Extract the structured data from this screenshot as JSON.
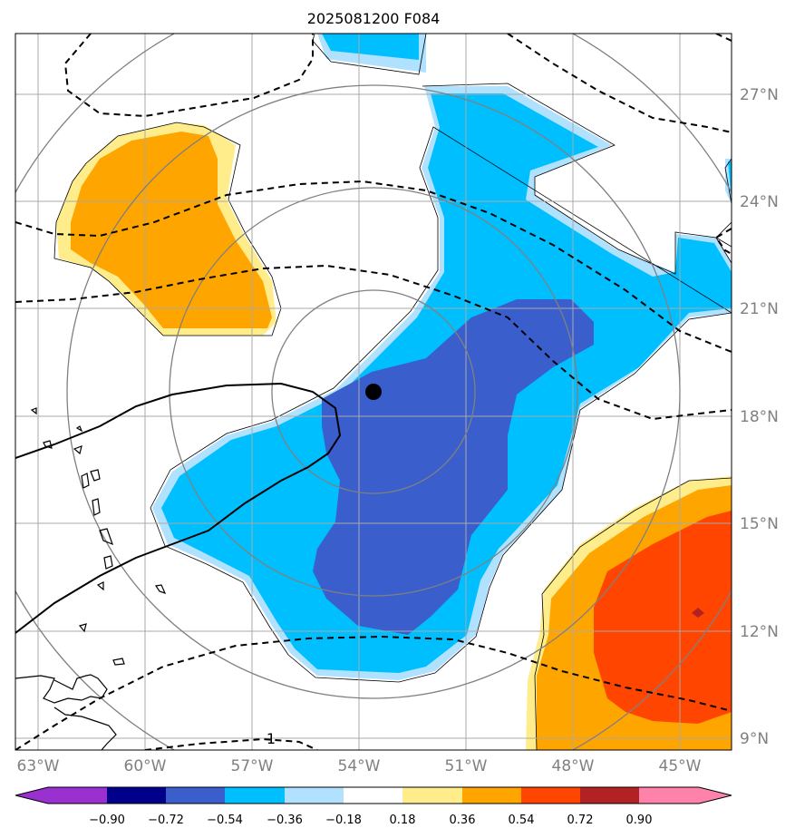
{
  "title": "2025081200 F084",
  "map": {
    "lat_labels": [
      "27°N",
      "24°N",
      "21°N",
      "18°N",
      "15°N",
      "12°N",
      "9°N"
    ],
    "lon_labels": [
      "63°W",
      "60°W",
      "57°W",
      "54°W",
      "51°W",
      "48°W",
      "45°W"
    ],
    "contour_label": "1",
    "center_marker": "storm-center-dot",
    "colors": {
      "purple": "#9b30d0",
      "navy": "#00008b",
      "royal_blue": "#3a5fcd",
      "deep_sky_blue": "#00bfff",
      "light_sky_blue": "#b0e2ff",
      "white": "#ffffff",
      "light_yellow": "#ffec8b",
      "orange": "#ffa500",
      "orange_red": "#ff4500",
      "firebrick": "#b22222",
      "pink": "#ff82ab"
    }
  },
  "colorbar": {
    "ticks": [
      "−0.90",
      "−0.72",
      "−0.54",
      "−0.36",
      "−0.18",
      "0.18",
      "0.36",
      "0.54",
      "0.72",
      "0.90"
    ]
  }
}
